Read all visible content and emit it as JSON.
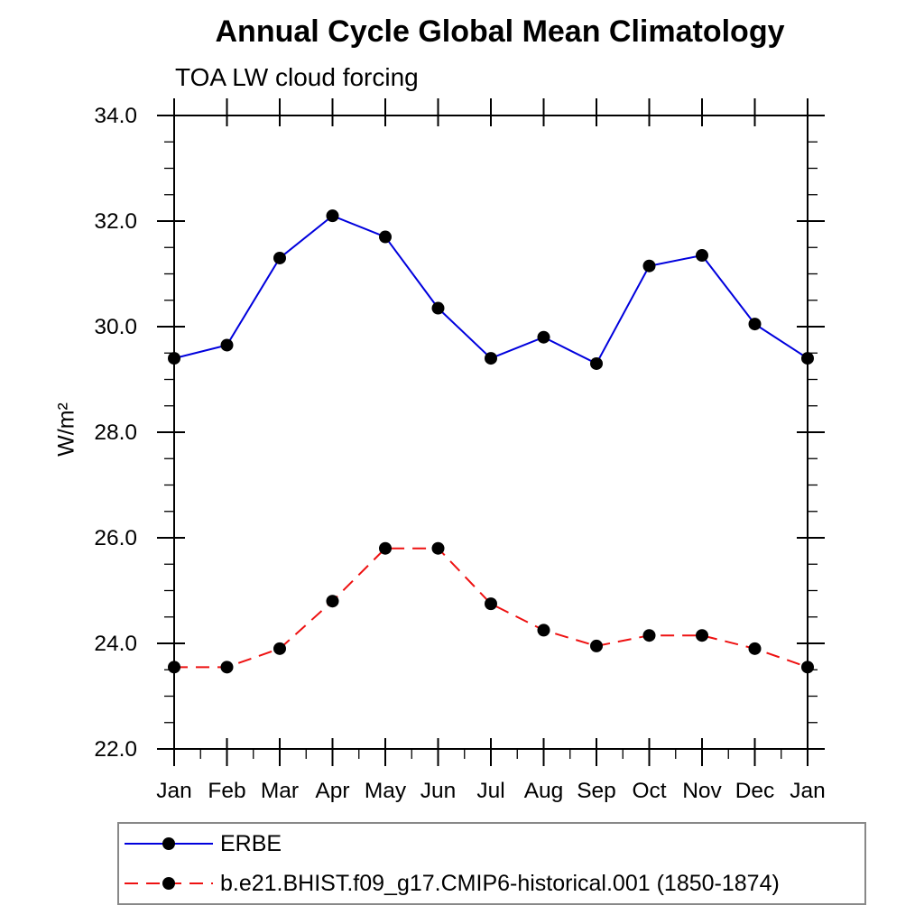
{
  "chart_data": {
    "type": "line",
    "title": "Annual Cycle Global Mean Climatology",
    "subtitle": "TOA LW cloud forcing",
    "ylabel": "W/m²",
    "xlabel": "",
    "categories": [
      "Jan",
      "Feb",
      "Mar",
      "Apr",
      "May",
      "Jun",
      "Jul",
      "Aug",
      "Sep",
      "Oct",
      "Nov",
      "Dec",
      "Jan"
    ],
    "ylim": [
      22.0,
      34.0
    ],
    "ytick_major_step": 2.0,
    "ytick_minor_step": 0.5,
    "ytick_labels": [
      "22.0",
      "24.0",
      "26.0",
      "28.0",
      "30.0",
      "32.0",
      "34.0"
    ],
    "grid": false,
    "legend_position": "bottom-left-box",
    "axis_color": "#000000",
    "marker_shape": "filled-circle",
    "series": [
      {
        "name": "ERBE",
        "color": "#0000dd",
        "line_style": "solid",
        "marker_color": "#000000",
        "values": [
          29.4,
          29.65,
          31.3,
          32.1,
          31.7,
          30.35,
          29.4,
          29.8,
          29.3,
          31.15,
          31.35,
          30.05,
          29.4
        ]
      },
      {
        "name": "b.e21.BHIST.f09_g17.CMIP6-historical.001 (1850-1874)",
        "color": "#ee1111",
        "line_style": "dashed",
        "marker_color": "#000000",
        "values": [
          23.55,
          23.55,
          23.9,
          24.8,
          25.8,
          25.8,
          24.75,
          24.25,
          23.95,
          24.15,
          24.15,
          23.9,
          23.55
        ]
      }
    ]
  }
}
